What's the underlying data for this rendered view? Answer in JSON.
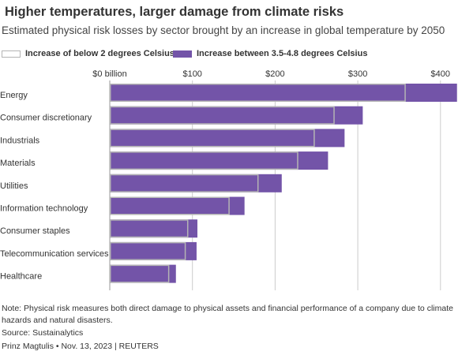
{
  "header": {
    "title": "Higher temperatures, larger damage from climate risks",
    "subtitle": "Estimated physical risk losses by sector brought by an increase in global temperature by 2050"
  },
  "footer": {
    "note": "Note: Physical risk measures both direct damage to physical assets and financial performance of a company due to climate hazards and natural disasters.",
    "source": "Source: Sustainalytics",
    "byline": "Prinz Magtulis • Nov. 13, 2023 | REUTERS"
  },
  "colors": {
    "high": "#7354a8",
    "low_outline": "#b4b4b4",
    "grid": "#cccccc",
    "text": "#333333"
  },
  "chart_data": {
    "type": "bar",
    "orientation": "horizontal",
    "title": "Higher temperatures, larger damage from climate risks",
    "subtitle": "Estimated physical risk losses by sector brought by an increase in global temperature by 2050",
    "xlim": [
      0,
      420
    ],
    "x_ticks": [
      0,
      100,
      200,
      300,
      400
    ],
    "x_tick_labels": [
      "$0 billion",
      "$100",
      "$200",
      "$300",
      "$400"
    ],
    "grid": true,
    "legend_position": "top-left",
    "categories": [
      "Energy",
      "Consumer discretionary",
      "Industrials",
      "Materials",
      "Utilities",
      "Information technology",
      "Consumer staples",
      "Telecommunication services",
      "Healthcare"
    ],
    "series": [
      {
        "name": "Increase of below 2 degrees Celsius",
        "values": [
          358,
          272,
          248,
          228,
          180,
          145,
          95,
          92,
          72
        ]
      },
      {
        "name": "Increase between 3.5-4.8 degrees Celsius",
        "values": [
          420,
          306,
          284,
          264,
          208,
          163,
          106,
          105,
          80
        ]
      }
    ]
  }
}
